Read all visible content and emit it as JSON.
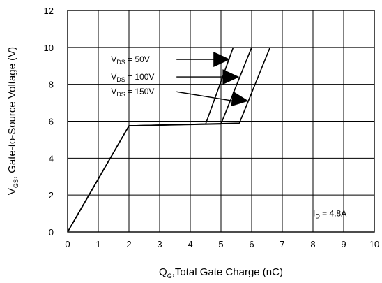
{
  "chart_data": {
    "type": "line",
    "xlabel": {
      "prefix": "Q",
      "sub": "G",
      "text": ",Total Gate Charge (nC)"
    },
    "ylabel": {
      "prefix": "V",
      "sub": "GS",
      "text": ", Gate-to-Source Voltage (V)"
    },
    "xlim": [
      0,
      10
    ],
    "ylim": [
      0,
      12
    ],
    "xticks": [
      0,
      1,
      2,
      3,
      4,
      5,
      6,
      7,
      8,
      9,
      10
    ],
    "yticks": [
      0,
      2,
      4,
      6,
      8,
      10,
      12
    ],
    "grid": true,
    "series": [
      {
        "name": "V_DS = 50V",
        "x": [
          0,
          2.0,
          4.5,
          5.4
        ],
        "y": [
          0,
          5.75,
          5.85,
          10.0
        ]
      },
      {
        "name": "V_DS = 100V",
        "x": [
          0,
          2.0,
          5.0,
          6.0
        ],
        "y": [
          0,
          5.75,
          5.85,
          10.0
        ]
      },
      {
        "name": "V_DS = 150V",
        "x": [
          0,
          2.0,
          5.6,
          6.6
        ],
        "y": [
          0,
          5.75,
          5.9,
          10.0
        ]
      }
    ],
    "annotations": [
      {
        "prefix": "V",
        "sub": "DS",
        "text": " =   50V",
        "arrow_from": [
          3.55,
          9.35
        ],
        "arrow_to": [
          5.3,
          9.35
        ]
      },
      {
        "prefix": "V",
        "sub": "DS",
        "text": " = 100V",
        "arrow_from": [
          3.55,
          8.4
        ],
        "arrow_to": [
          5.6,
          8.4
        ]
      },
      {
        "prefix": "V",
        "sub": "DS",
        "text": " = 150V",
        "arrow_from": [
          3.55,
          7.6
        ],
        "arrow_to": [
          5.9,
          7.1
        ]
      }
    ],
    "current_label": {
      "prefix": "I",
      "sub": "D",
      "text": " = 4.8A"
    }
  }
}
